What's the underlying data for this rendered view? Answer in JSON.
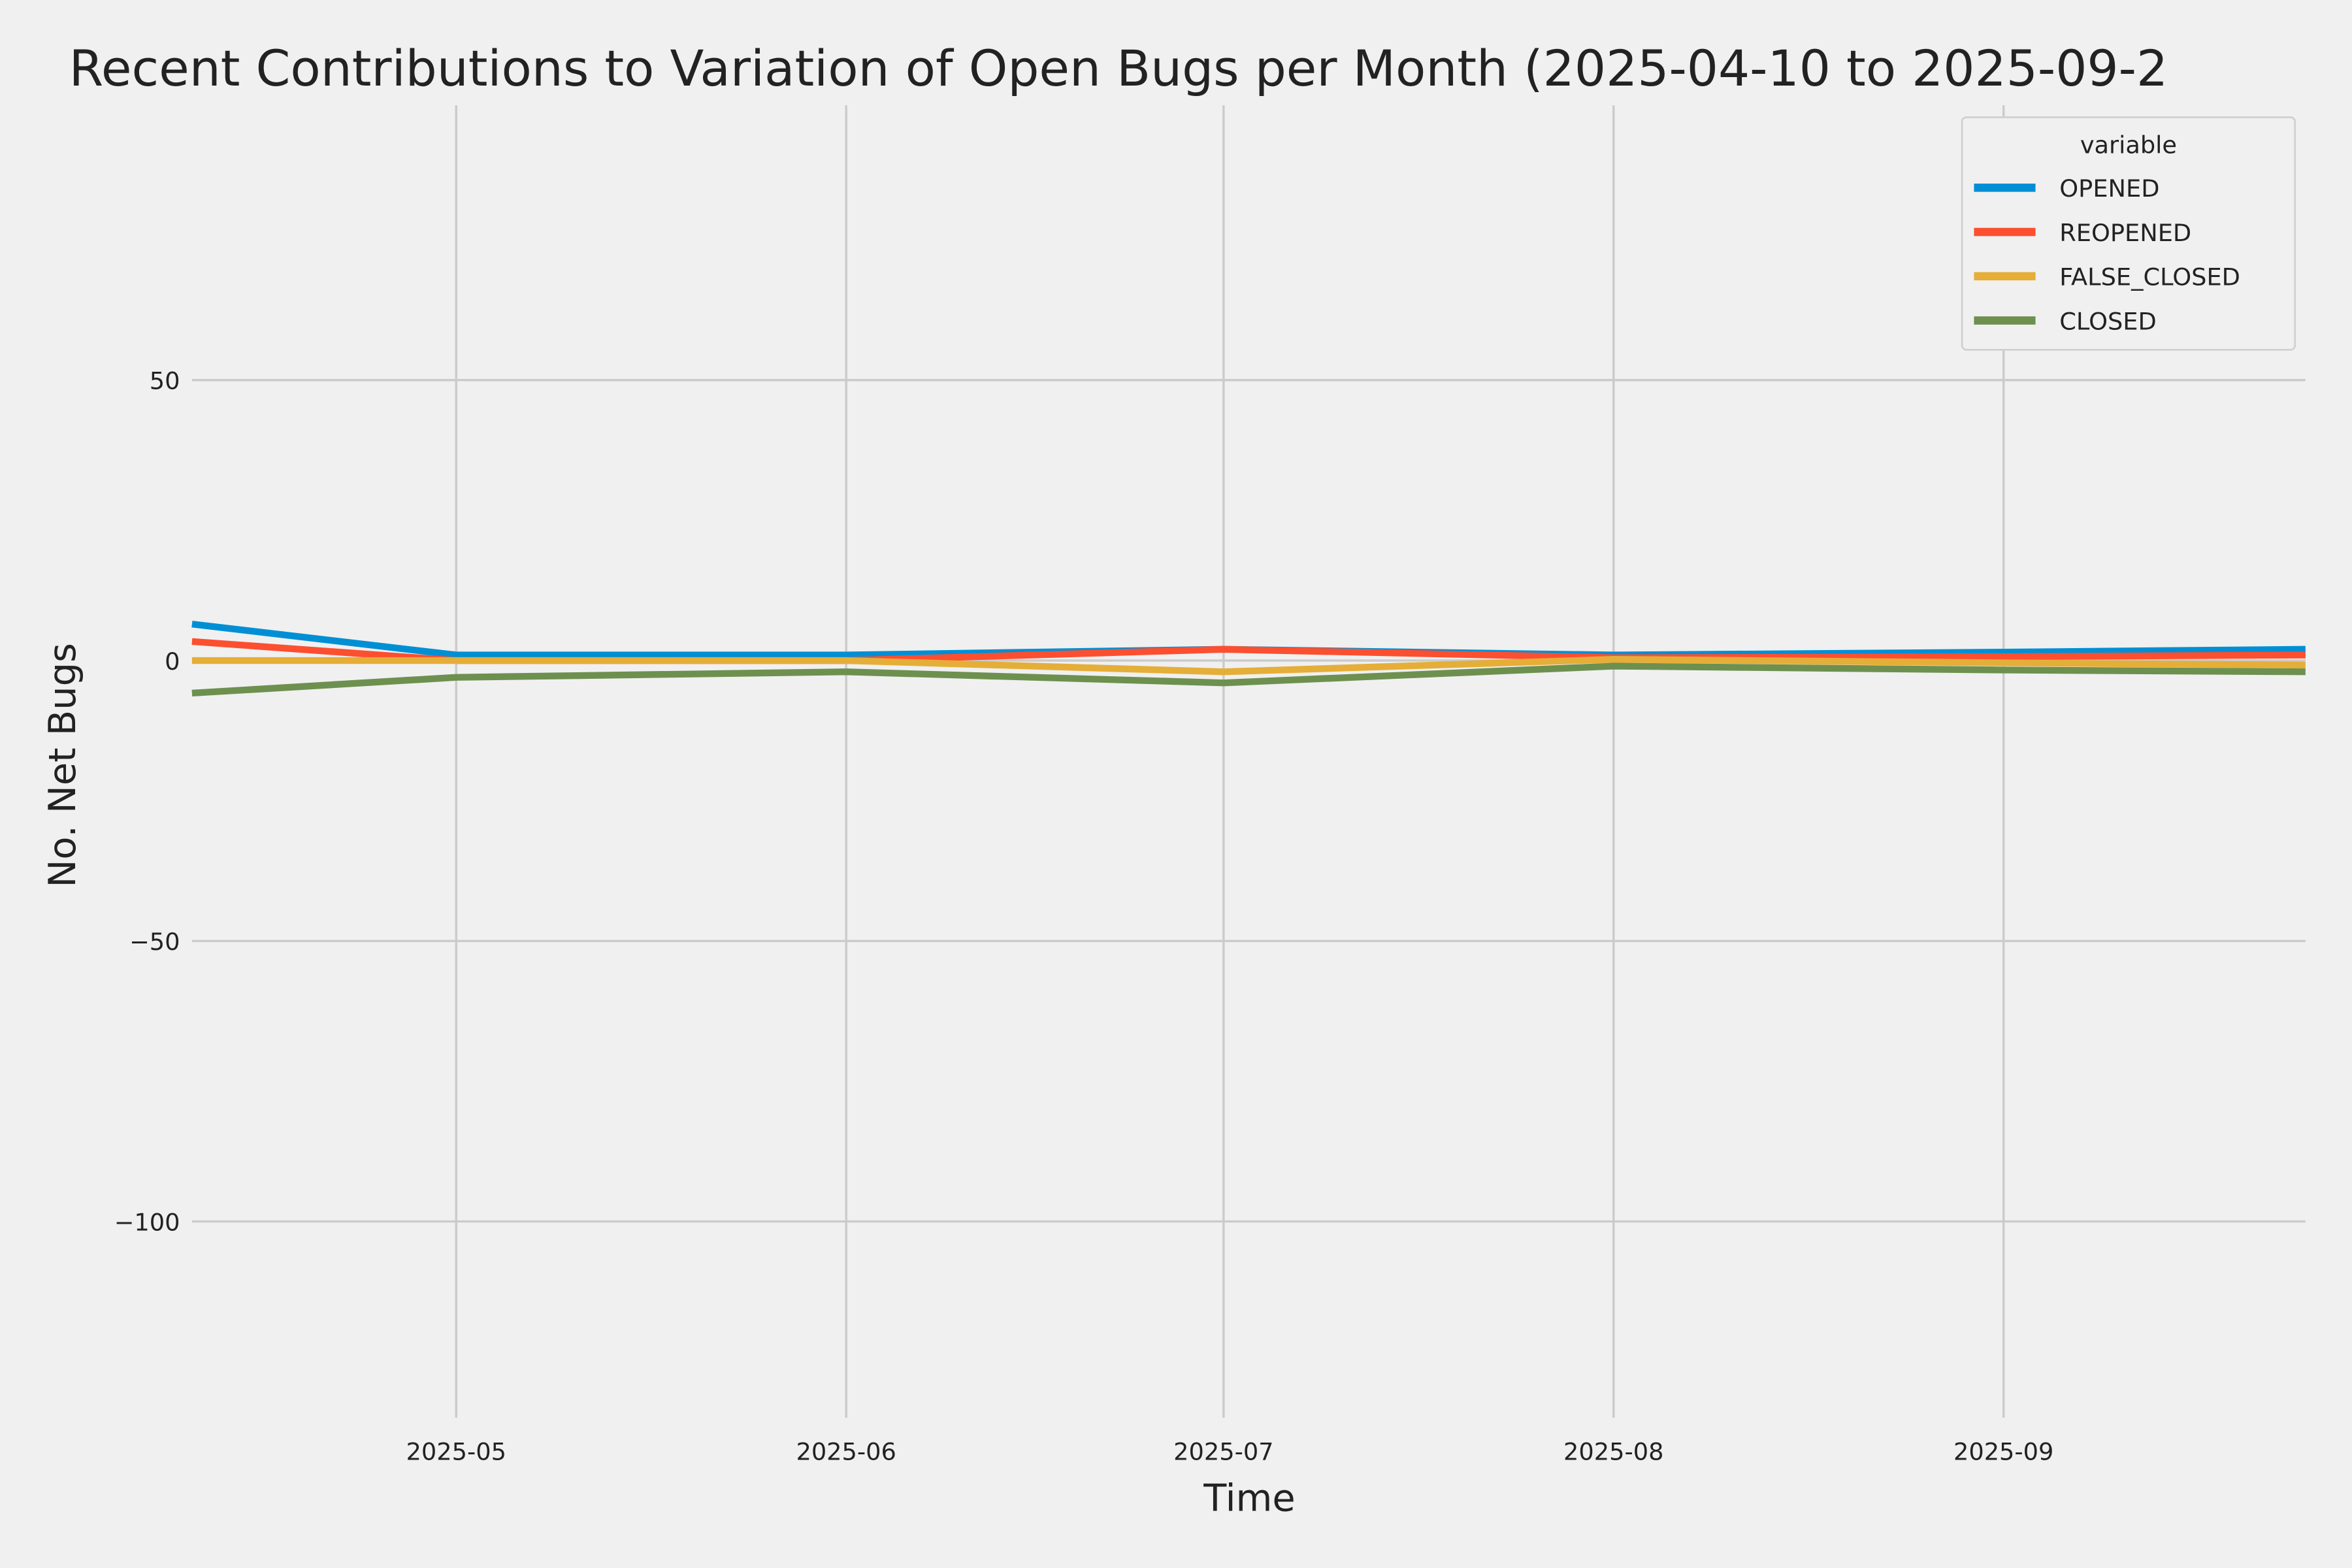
{
  "chart_data": {
    "type": "line",
    "title": "Recent Contributions to Variation of Open Bugs per Month (2025-04-10 to 2025-09-2",
    "xlabel": "Time",
    "ylabel": "No. Net Bugs",
    "x": [
      "2025-04-10",
      "2025-05-01",
      "2025-06-01",
      "2025-07-01",
      "2025-08-01",
      "2025-09-01",
      "2025-09-25"
    ],
    "x_range": [
      "2025-04-10",
      "2025-09-25"
    ],
    "ylim": [
      -135,
      99
    ],
    "grid": true,
    "xticks": [
      {
        "date": "2025-05-01",
        "label": "2025-05"
      },
      {
        "date": "2025-06-01",
        "label": "2025-06"
      },
      {
        "date": "2025-07-01",
        "label": "2025-07"
      },
      {
        "date": "2025-08-01",
        "label": "2025-08"
      },
      {
        "date": "2025-09-01",
        "label": "2025-09"
      }
    ],
    "yticks": [
      {
        "value": 50,
        "label": "50"
      },
      {
        "value": 0,
        "label": "0"
      },
      {
        "value": -50,
        "label": "−50"
      },
      {
        "value": -100,
        "label": "−100"
      }
    ],
    "legend": {
      "title": "variable",
      "placement": "top-right"
    },
    "series": [
      {
        "name": "OPENED",
        "color": "#008fd5",
        "values": [
          6.5,
          1,
          1,
          2,
          1,
          1.5,
          2
        ]
      },
      {
        "name": "REOPENED",
        "color": "#fc4f30",
        "values": [
          3.4,
          0,
          0,
          2,
          0.5,
          0.7,
          1
        ]
      },
      {
        "name": "FALSE_CLOSED",
        "color": "#e5ae38",
        "values": [
          0,
          0,
          0,
          -2,
          0.2,
          -0.4,
          -0.8
        ]
      },
      {
        "name": "CLOSED",
        "color": "#6d904f",
        "values": [
          -5.8,
          -3,
          -2,
          -4,
          -1,
          -1.7,
          -2
        ]
      }
    ]
  }
}
